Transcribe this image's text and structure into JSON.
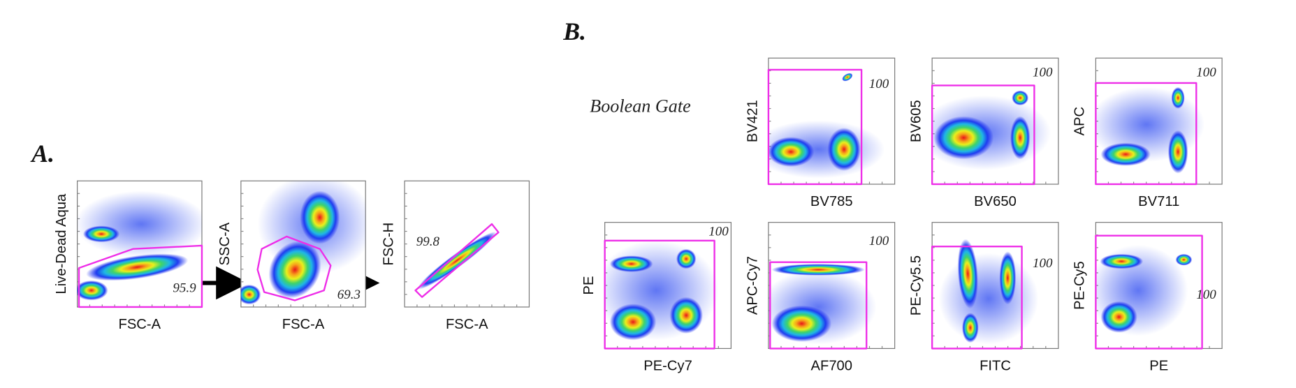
{
  "panels": {
    "A": {
      "label": "A.",
      "plots": [
        {
          "y_label": "Live-Dead Aqua",
          "x_label": "FSC-A",
          "gate_value": 95.9
        },
        {
          "y_label": "SSC-A",
          "x_label": "FSC-A",
          "gate_value": 69.3
        },
        {
          "y_label": "FSC-H",
          "x_label": "FSC-A",
          "gate_value": 99.8
        }
      ]
    },
    "B": {
      "label": "B.",
      "boolean_gate_label": "Boolean Gate",
      "plots": [
        {
          "y_label": "BV421",
          "x_label": "BV785",
          "gate_value": 100
        },
        {
          "y_label": "BV605",
          "x_label": "BV650",
          "gate_value": 100
        },
        {
          "y_label": "APC",
          "x_label": "BV711",
          "gate_value": 100
        },
        {
          "y_label": "PE",
          "x_label": "PE-Cy7",
          "gate_value": 100
        },
        {
          "y_label": "APC-Cy7",
          "x_label": "AF700",
          "gate_value": 100
        },
        {
          "y_label": "PE-Cy5.5",
          "x_label": "FITC",
          "gate_value": 100
        },
        {
          "y_label": "PE-Cy5",
          "x_label": "PE",
          "gate_value": 100
        }
      ]
    }
  }
}
